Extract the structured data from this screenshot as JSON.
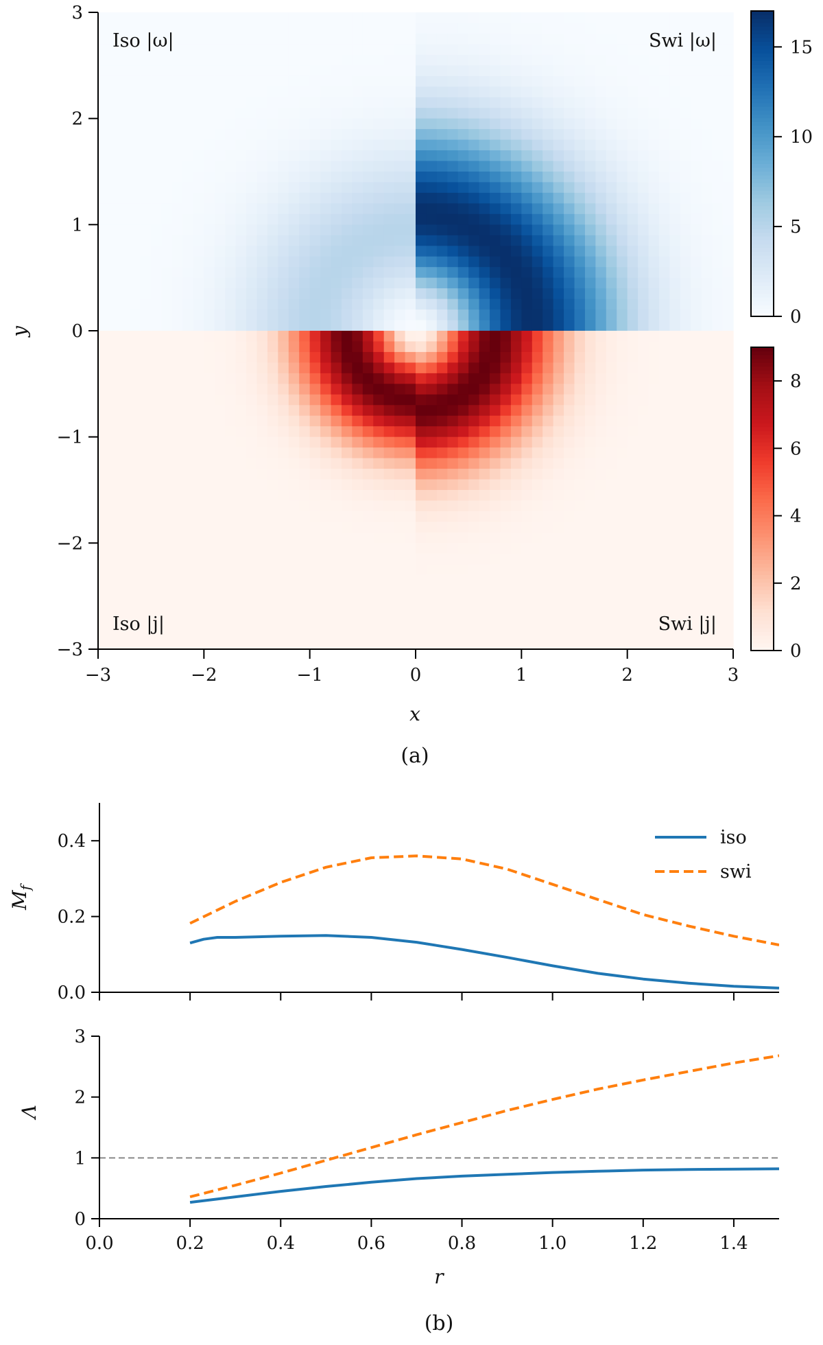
{
  "chart_data": [
    {
      "type": "heatmap",
      "panel_label": "(a)",
      "xlabel": "x",
      "ylabel": "y",
      "xlim": [
        -3,
        3
      ],
      "ylim": [
        -3,
        3
      ],
      "x_ticks": [
        -3,
        -2,
        -1,
        0,
        1,
        2,
        3
      ],
      "y_ticks": [
        -3,
        -2,
        -1,
        0,
        1,
        2,
        3
      ],
      "x_tick_labels": [
        "−3",
        "−2",
        "−1",
        "0",
        "1",
        "2",
        "3"
      ],
      "y_tick_labels": [
        "−3",
        "−2",
        "−1",
        "0",
        "1",
        "2",
        "3"
      ],
      "quadrants": {
        "top_left": "Iso |ω|",
        "top_right": "Swi |ω|",
        "bottom_left": "Iso |j|",
        "bottom_right": "Swi |j|"
      },
      "fields": {
        "iso_omega": {
          "peak": 5.0,
          "peak_radius": 0.95
        },
        "swi_omega": {
          "peak": 17.0,
          "peak_radius": 1.1
        },
        "iso_j": {
          "peak": 9.0,
          "peak_radius": 0.65
        },
        "swi_j": {
          "peak": 9.0,
          "peak_radius": 0.75
        }
      },
      "colorbars": [
        {
          "name": "|ω|",
          "colormap": "Blues",
          "range": [
            0,
            17
          ],
          "ticks": [
            0,
            5,
            10,
            15
          ],
          "tick_labels": [
            "0",
            "5",
            "10",
            "15"
          ]
        },
        {
          "name": "|j|",
          "colormap": "Reds",
          "range": [
            0,
            9
          ],
          "ticks": [
            0,
            2,
            4,
            6,
            8
          ],
          "tick_labels": [
            "0",
            "2",
            "4",
            "6",
            "8"
          ]
        }
      ]
    },
    {
      "type": "line",
      "panel_label": "(b)",
      "xlabel": "r",
      "xlim": [
        0.0,
        1.5
      ],
      "x_ticks": [
        0.0,
        0.2,
        0.4,
        0.6,
        0.8,
        1.0,
        1.2,
        1.4
      ],
      "x_tick_labels": [
        "0.0",
        "0.2",
        "0.4",
        "0.6",
        "0.8",
        "1.0",
        "1.2",
        "1.4"
      ],
      "legend": {
        "placement": "top-right",
        "entries": [
          "iso",
          "swi"
        ]
      },
      "subplots": [
        {
          "ylabel": "M_f",
          "ylim": [
            0.0,
            0.5
          ],
          "y_ticks": [
            0.0,
            0.2,
            0.4
          ],
          "y_tick_labels": [
            "0.0",
            "0.2",
            "0.4"
          ],
          "series": [
            {
              "name": "iso",
              "color": "#1f77b4",
              "style": "solid",
              "x": [
                0.2,
                0.23,
                0.26,
                0.3,
                0.4,
                0.5,
                0.6,
                0.7,
                0.8,
                0.9,
                1.0,
                1.1,
                1.2,
                1.3,
                1.4,
                1.5
              ],
              "y": [
                0.13,
                0.14,
                0.145,
                0.145,
                0.148,
                0.15,
                0.145,
                0.132,
                0.113,
                0.092,
                0.07,
                0.05,
                0.035,
                0.024,
                0.016,
                0.011
              ]
            },
            {
              "name": "swi",
              "color": "#ff7f0e",
              "style": "dashed",
              "x": [
                0.2,
                0.3,
                0.4,
                0.5,
                0.6,
                0.7,
                0.8,
                0.9,
                1.0,
                1.1,
                1.2,
                1.3,
                1.4,
                1.5
              ],
              "y": [
                0.182,
                0.24,
                0.29,
                0.33,
                0.355,
                0.36,
                0.352,
                0.325,
                0.285,
                0.245,
                0.205,
                0.175,
                0.148,
                0.125
              ]
            }
          ]
        },
        {
          "ylabel": "Λ",
          "ylim": [
            0,
            3
          ],
          "y_ticks": [
            0,
            1,
            2,
            3
          ],
          "y_tick_labels": [
            "0",
            "1",
            "2",
            "3"
          ],
          "reference_line": {
            "y": 1,
            "color": "#888888",
            "style": "dashed"
          },
          "series": [
            {
              "name": "iso",
              "color": "#1f77b4",
              "style": "solid",
              "x": [
                0.2,
                0.3,
                0.4,
                0.5,
                0.6,
                0.7,
                0.8,
                0.9,
                1.0,
                1.1,
                1.2,
                1.3,
                1.4,
                1.5
              ],
              "y": [
                0.27,
                0.36,
                0.45,
                0.53,
                0.6,
                0.66,
                0.7,
                0.73,
                0.76,
                0.78,
                0.8,
                0.81,
                0.815,
                0.82
              ]
            },
            {
              "name": "swi",
              "color": "#ff7f0e",
              "style": "dashed",
              "x": [
                0.2,
                0.3,
                0.4,
                0.5,
                0.6,
                0.7,
                0.8,
                0.9,
                1.0,
                1.1,
                1.2,
                1.3,
                1.4,
                1.5
              ],
              "y": [
                0.36,
                0.55,
                0.75,
                0.96,
                1.17,
                1.38,
                1.58,
                1.78,
                1.96,
                2.13,
                2.28,
                2.42,
                2.56,
                2.68
              ]
            }
          ]
        }
      ]
    }
  ]
}
